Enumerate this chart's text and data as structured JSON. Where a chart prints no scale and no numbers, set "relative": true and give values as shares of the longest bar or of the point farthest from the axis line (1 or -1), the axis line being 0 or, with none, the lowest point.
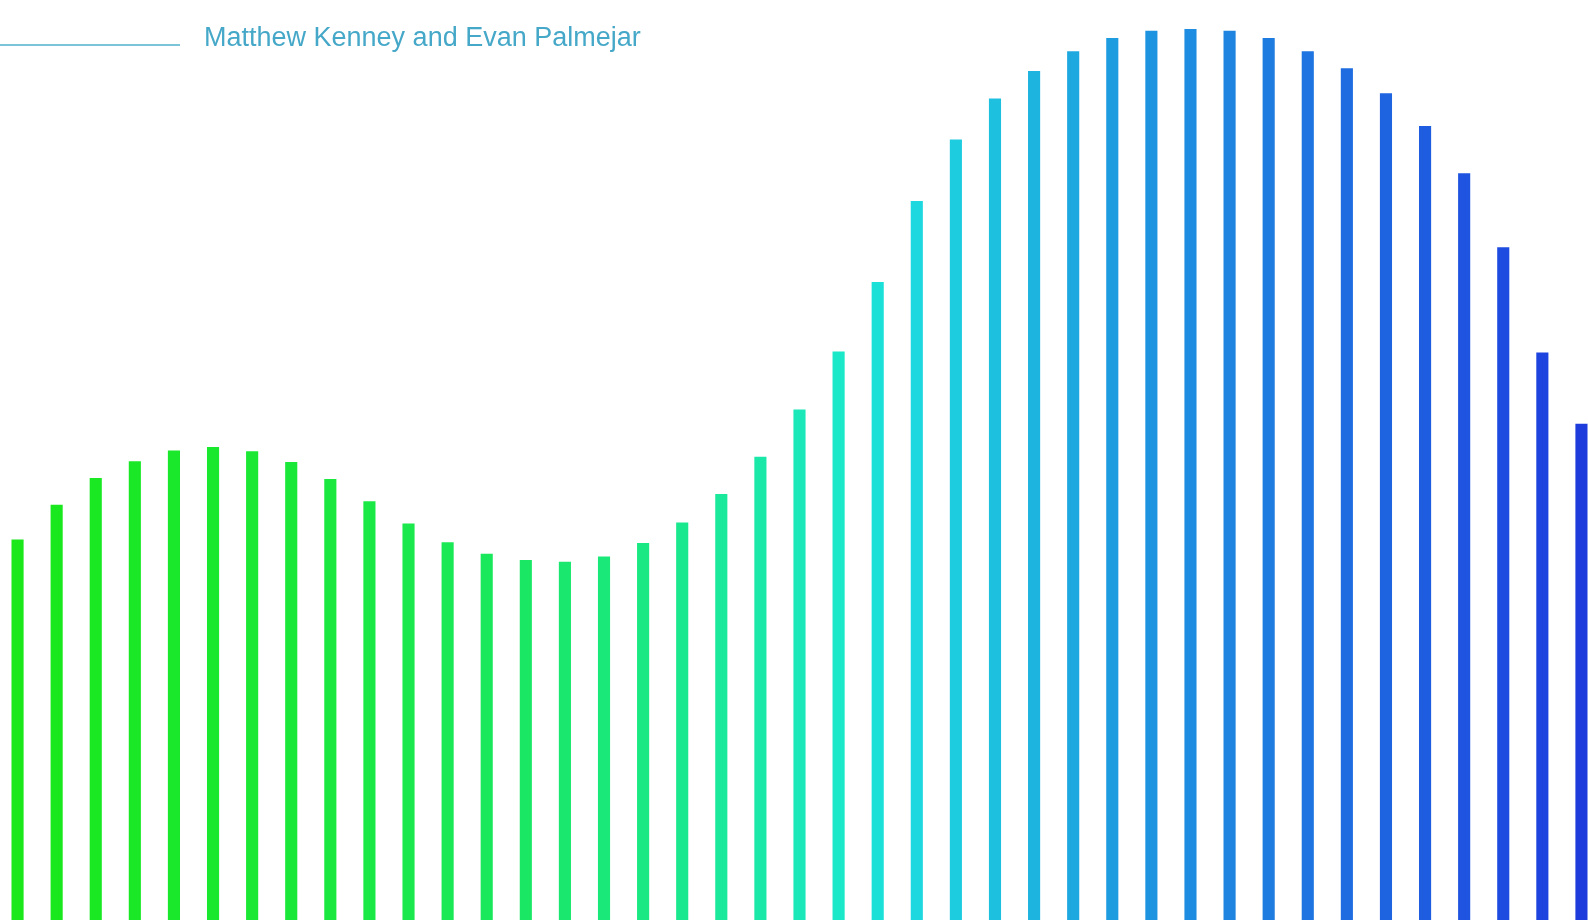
{
  "chart_data": {
    "type": "bar",
    "title": "Matthew Kenney and Evan Palmejar",
    "relative": true,
    "categories": [
      null,
      null,
      null,
      null,
      null,
      null,
      null,
      null,
      null,
      null,
      null,
      null,
      null,
      null,
      null,
      null,
      null,
      null,
      null,
      null,
      null,
      null,
      null,
      null,
      null,
      null,
      null,
      null,
      null,
      null,
      null,
      null,
      null,
      null,
      null,
      null,
      null,
      null,
      null,
      null,
      null
    ],
    "values": [
      0.427,
      0.466,
      0.496,
      0.515,
      0.527,
      0.531,
      0.526,
      0.514,
      0.495,
      0.47,
      0.445,
      0.424,
      0.411,
      0.404,
      0.402,
      0.408,
      0.423,
      0.446,
      0.478,
      0.52,
      0.573,
      0.638,
      0.716,
      0.807,
      0.876,
      0.922,
      0.953,
      0.975,
      0.99,
      0.998,
      1,
      0.998,
      0.99,
      0.975,
      0.956,
      0.928,
      0.891,
      0.838,
      0.755,
      0.637,
      0.557
    ],
    "colors": [
      "#1ae81a",
      "#1ae81e",
      "#1ae822",
      "#1ae826",
      "#1ae82a",
      "#1ae82e",
      "#1ae833",
      "#1ae838",
      "#1ae83e",
      "#1ae845",
      "#1ae84c",
      "#1ae854",
      "#1ae85c",
      "#1ae865",
      "#1ae86e",
      "#1ae878",
      "#1ae882",
      "#1ae88e",
      "#1ae89a",
      "#1ae8a8",
      "#1ae8b8",
      "#1ae8c8",
      "#1ae0d8",
      "#1ed8e0",
      "#1ecce0",
      "#1ec0e0",
      "#1eb4e0",
      "#1ea8e0",
      "#1e9ce0",
      "#1e94e0",
      "#1e8ce0",
      "#1e84e0",
      "#1e7ce0",
      "#1e74e0",
      "#1e6ce0",
      "#1e64e0",
      "#1e5ce0",
      "#1e54e0",
      "#1e4ce0",
      "#1e44e0",
      "#1e3cdc"
    ]
  }
}
